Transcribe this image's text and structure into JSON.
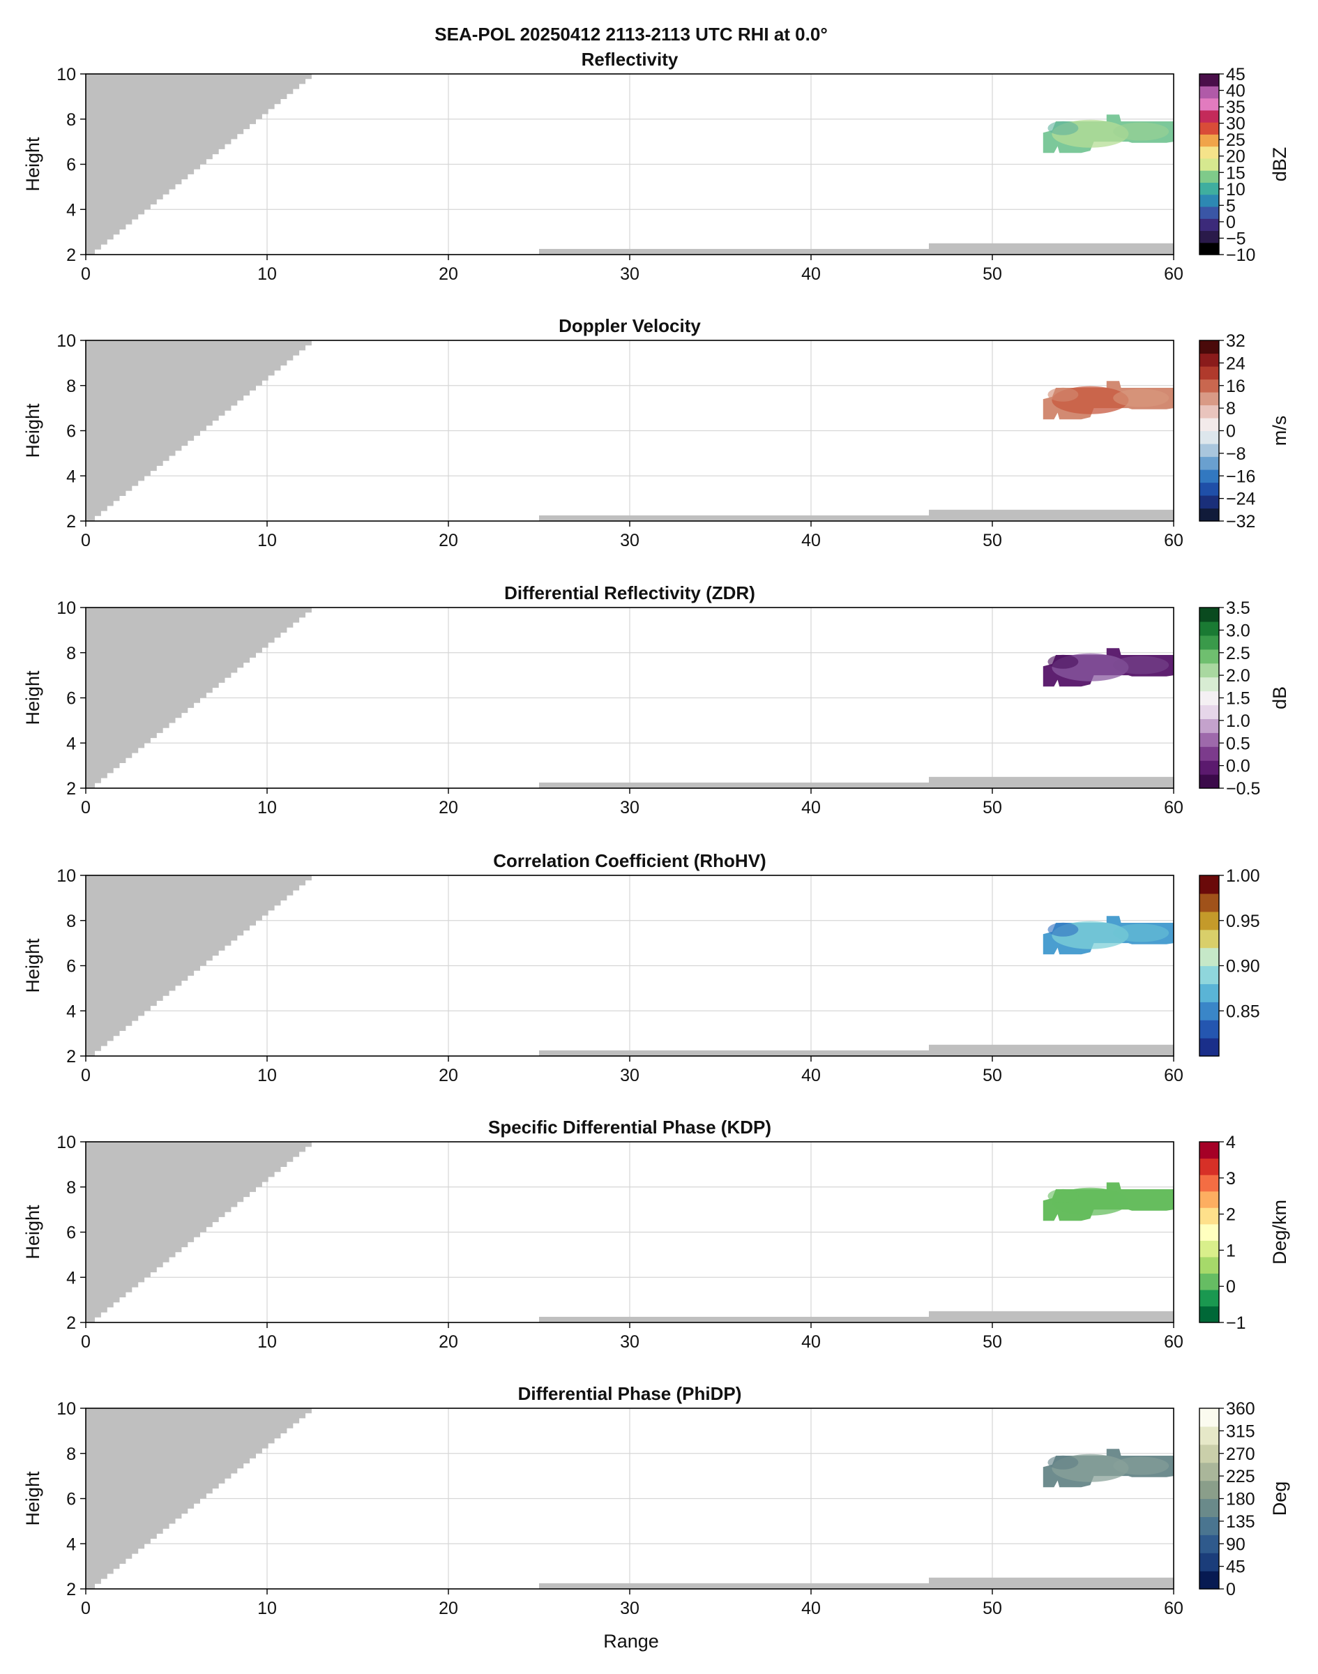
{
  "figure": {
    "suptitle": "SEA-POL 20250412 2113-2113 UTC RHI at 0.0°",
    "xlabel": "Range"
  },
  "colors": {
    "blockage": "#bfbfbf",
    "grid": "#d6d6d6",
    "axes": "#000000"
  },
  "chart_data": [
    {
      "type": "heatmap",
      "title": "Reflectivity",
      "xlabel": "",
      "ylabel": "Height",
      "xlim": [
        0,
        60
      ],
      "ylim": [
        2,
        10
      ],
      "xticks": [
        0,
        10,
        20,
        30,
        40,
        50,
        60
      ],
      "yticks": [
        2,
        4,
        6,
        8,
        10
      ],
      "grid": true,
      "colorbar": {
        "label": "dBZ",
        "range": [
          -10,
          45
        ],
        "ticks": [
          "45",
          "40",
          "35",
          "30",
          "25",
          "20",
          "15",
          "10",
          "5",
          "0",
          "−5",
          "−10"
        ],
        "colors": [
          "#000000",
          "#2a1a4a",
          "#3c2a7a",
          "#3a56a6",
          "#2d88b3",
          "#3fae9f",
          "#7fca8a",
          "#d6e88f",
          "#f5e38a",
          "#f0a44a",
          "#d94c38",
          "#c42a5a",
          "#e27bbf",
          "#b05aa8",
          "#4a0f4a"
        ]
      },
      "echo": {
        "range_km": [
          52.8,
          60
        ],
        "height_km": [
          6.5,
          8.2
        ],
        "color": "#7cc89a",
        "highlight": "#b6dd95",
        "note_colors": [
          "#5fb39c",
          "#9ed494"
        ]
      }
    },
    {
      "type": "heatmap",
      "title": "Doppler Velocity",
      "xlabel": "",
      "ylabel": "Height",
      "xlim": [
        0,
        60
      ],
      "ylim": [
        2,
        10
      ],
      "xticks": [
        0,
        10,
        20,
        30,
        40,
        50,
        60
      ],
      "yticks": [
        2,
        4,
        6,
        8,
        10
      ],
      "grid": true,
      "colorbar": {
        "label": "m/s",
        "range": [
          -32,
          32
        ],
        "ticks": [
          "32",
          "24",
          "16",
          "8",
          "0",
          "−8",
          "−16",
          "−24",
          "−32"
        ],
        "colors": [
          "#111b3a",
          "#1a2f7a",
          "#1f4fa8",
          "#3278c0",
          "#6aa0cf",
          "#a9c6dd",
          "#dde6ec",
          "#f3eaea",
          "#e9c4bd",
          "#d99a86",
          "#c9674f",
          "#b03a2c",
          "#8a1b1b",
          "#4a0a0a"
        ]
      },
      "echo": {
        "range_km": [
          52.8,
          60
        ],
        "height_km": [
          6.5,
          8.2
        ],
        "color": "#d28a72",
        "highlight": "#c7583f",
        "note_colors": [
          "#d28a72",
          "#d99a80"
        ]
      }
    },
    {
      "type": "heatmap",
      "title": "Differential Reflectivity (ZDR)",
      "xlabel": "",
      "ylabel": "Height",
      "xlim": [
        0,
        60
      ],
      "ylim": [
        2,
        10
      ],
      "xticks": [
        0,
        10,
        20,
        30,
        40,
        50,
        60
      ],
      "yticks": [
        2,
        4,
        6,
        8,
        10
      ],
      "grid": true,
      "colorbar": {
        "label": "dB",
        "range": [
          -0.5,
          3.5
        ],
        "ticks": [
          "3.5",
          "3.0",
          "2.5",
          "2.0",
          "1.5",
          "1.0",
          "0.5",
          "0.0",
          "−0.5"
        ],
        "colors": [
          "#3b0a4a",
          "#5b1a6e",
          "#7c3b8c",
          "#9e69ab",
          "#c4a2cc",
          "#e6d6e9",
          "#f4f0f3",
          "#d8ecd3",
          "#a9d8a0",
          "#6fbf6f",
          "#3a9a4a",
          "#1a7a33",
          "#0a4a1f"
        ]
      },
      "echo": {
        "range_km": [
          52.8,
          60
        ],
        "height_km": [
          6.5,
          8.2
        ],
        "color": "#5e2070",
        "highlight": "#8a5aa0",
        "note_colors": [
          "#4a0f5c",
          "#7a4a90"
        ]
      }
    },
    {
      "type": "heatmap",
      "title": "Correlation Coefficient (RhoHV)",
      "xlabel": "",
      "ylabel": "Height",
      "xlim": [
        0,
        60
      ],
      "ylim": [
        2,
        10
      ],
      "xticks": [
        0,
        10,
        20,
        30,
        40,
        50,
        60
      ],
      "yticks": [
        2,
        4,
        6,
        8,
        10
      ],
      "grid": true,
      "colorbar": {
        "label": "",
        "range": [
          0.8,
          1.0
        ],
        "ticks": [
          "1.00",
          "0.95",
          "0.90",
          "0.85"
        ],
        "tick_values": [
          1.0,
          0.95,
          0.9,
          0.85
        ],
        "colors": [
          "#1a2f8a",
          "#2456b0",
          "#3a86c8",
          "#5ab4d6",
          "#8fd6dc",
          "#c6e8c8",
          "#d9cf6a",
          "#c49a2a",
          "#a0521a",
          "#6a0a0a"
        ]
      },
      "echo": {
        "range_km": [
          52.8,
          60
        ],
        "height_km": [
          6.5,
          8.2
        ],
        "color": "#4a9ed0",
        "highlight": "#7fd0d8",
        "note_colors": [
          "#2f6fc0",
          "#6cc4d6"
        ]
      }
    },
    {
      "type": "heatmap",
      "title": "Specific Differential Phase (KDP)",
      "xlabel": "",
      "ylabel": "Height",
      "xlim": [
        0,
        60
      ],
      "ylim": [
        2,
        10
      ],
      "xticks": [
        0,
        10,
        20,
        30,
        40,
        50,
        60
      ],
      "yticks": [
        2,
        4,
        6,
        8,
        10
      ],
      "grid": true,
      "colorbar": {
        "label": "Deg/km",
        "range": [
          -1,
          4
        ],
        "ticks": [
          "4",
          "3",
          "2",
          "1",
          "0",
          "−1"
        ],
        "colors": [
          "#006837",
          "#1a9850",
          "#66bd63",
          "#a6d96a",
          "#d9ef8b",
          "#ffffbf",
          "#fee08b",
          "#fdae61",
          "#f46d43",
          "#d73027",
          "#a50026"
        ]
      },
      "echo": {
        "range_km": [
          52.8,
          60
        ],
        "height_km": [
          6.5,
          8.2
        ],
        "color": "#66bd5e",
        "highlight": "#66bd5e",
        "note_colors": [
          "#66bd5e",
          "#66bd5e"
        ]
      }
    },
    {
      "type": "heatmap",
      "title": "Differential Phase (PhiDP)",
      "xlabel": "Range",
      "ylabel": "Height",
      "xlim": [
        0,
        60
      ],
      "ylim": [
        2,
        10
      ],
      "xticks": [
        0,
        10,
        20,
        30,
        40,
        50,
        60
      ],
      "yticks": [
        2,
        4,
        6,
        8,
        10
      ],
      "grid": true,
      "colorbar": {
        "label": "Deg",
        "range": [
          0,
          360
        ],
        "ticks": [
          "360",
          "315",
          "270",
          "225",
          "180",
          "135",
          "90",
          "45",
          "0"
        ],
        "colors": [
          "#071a52",
          "#1b3d7a",
          "#2f5a8c",
          "#4a7590",
          "#6a8a8a",
          "#8a9e8a",
          "#aab69a",
          "#cacfaa",
          "#e6e8c8",
          "#fbfbef"
        ]
      },
      "echo": {
        "range_km": [
          52.8,
          60
        ],
        "height_km": [
          6.5,
          8.2
        ],
        "color": "#6e8c8e",
        "highlight": "#8aa29a",
        "note_colors": [
          "#5f7f86",
          "#8aa29a"
        ]
      }
    }
  ]
}
